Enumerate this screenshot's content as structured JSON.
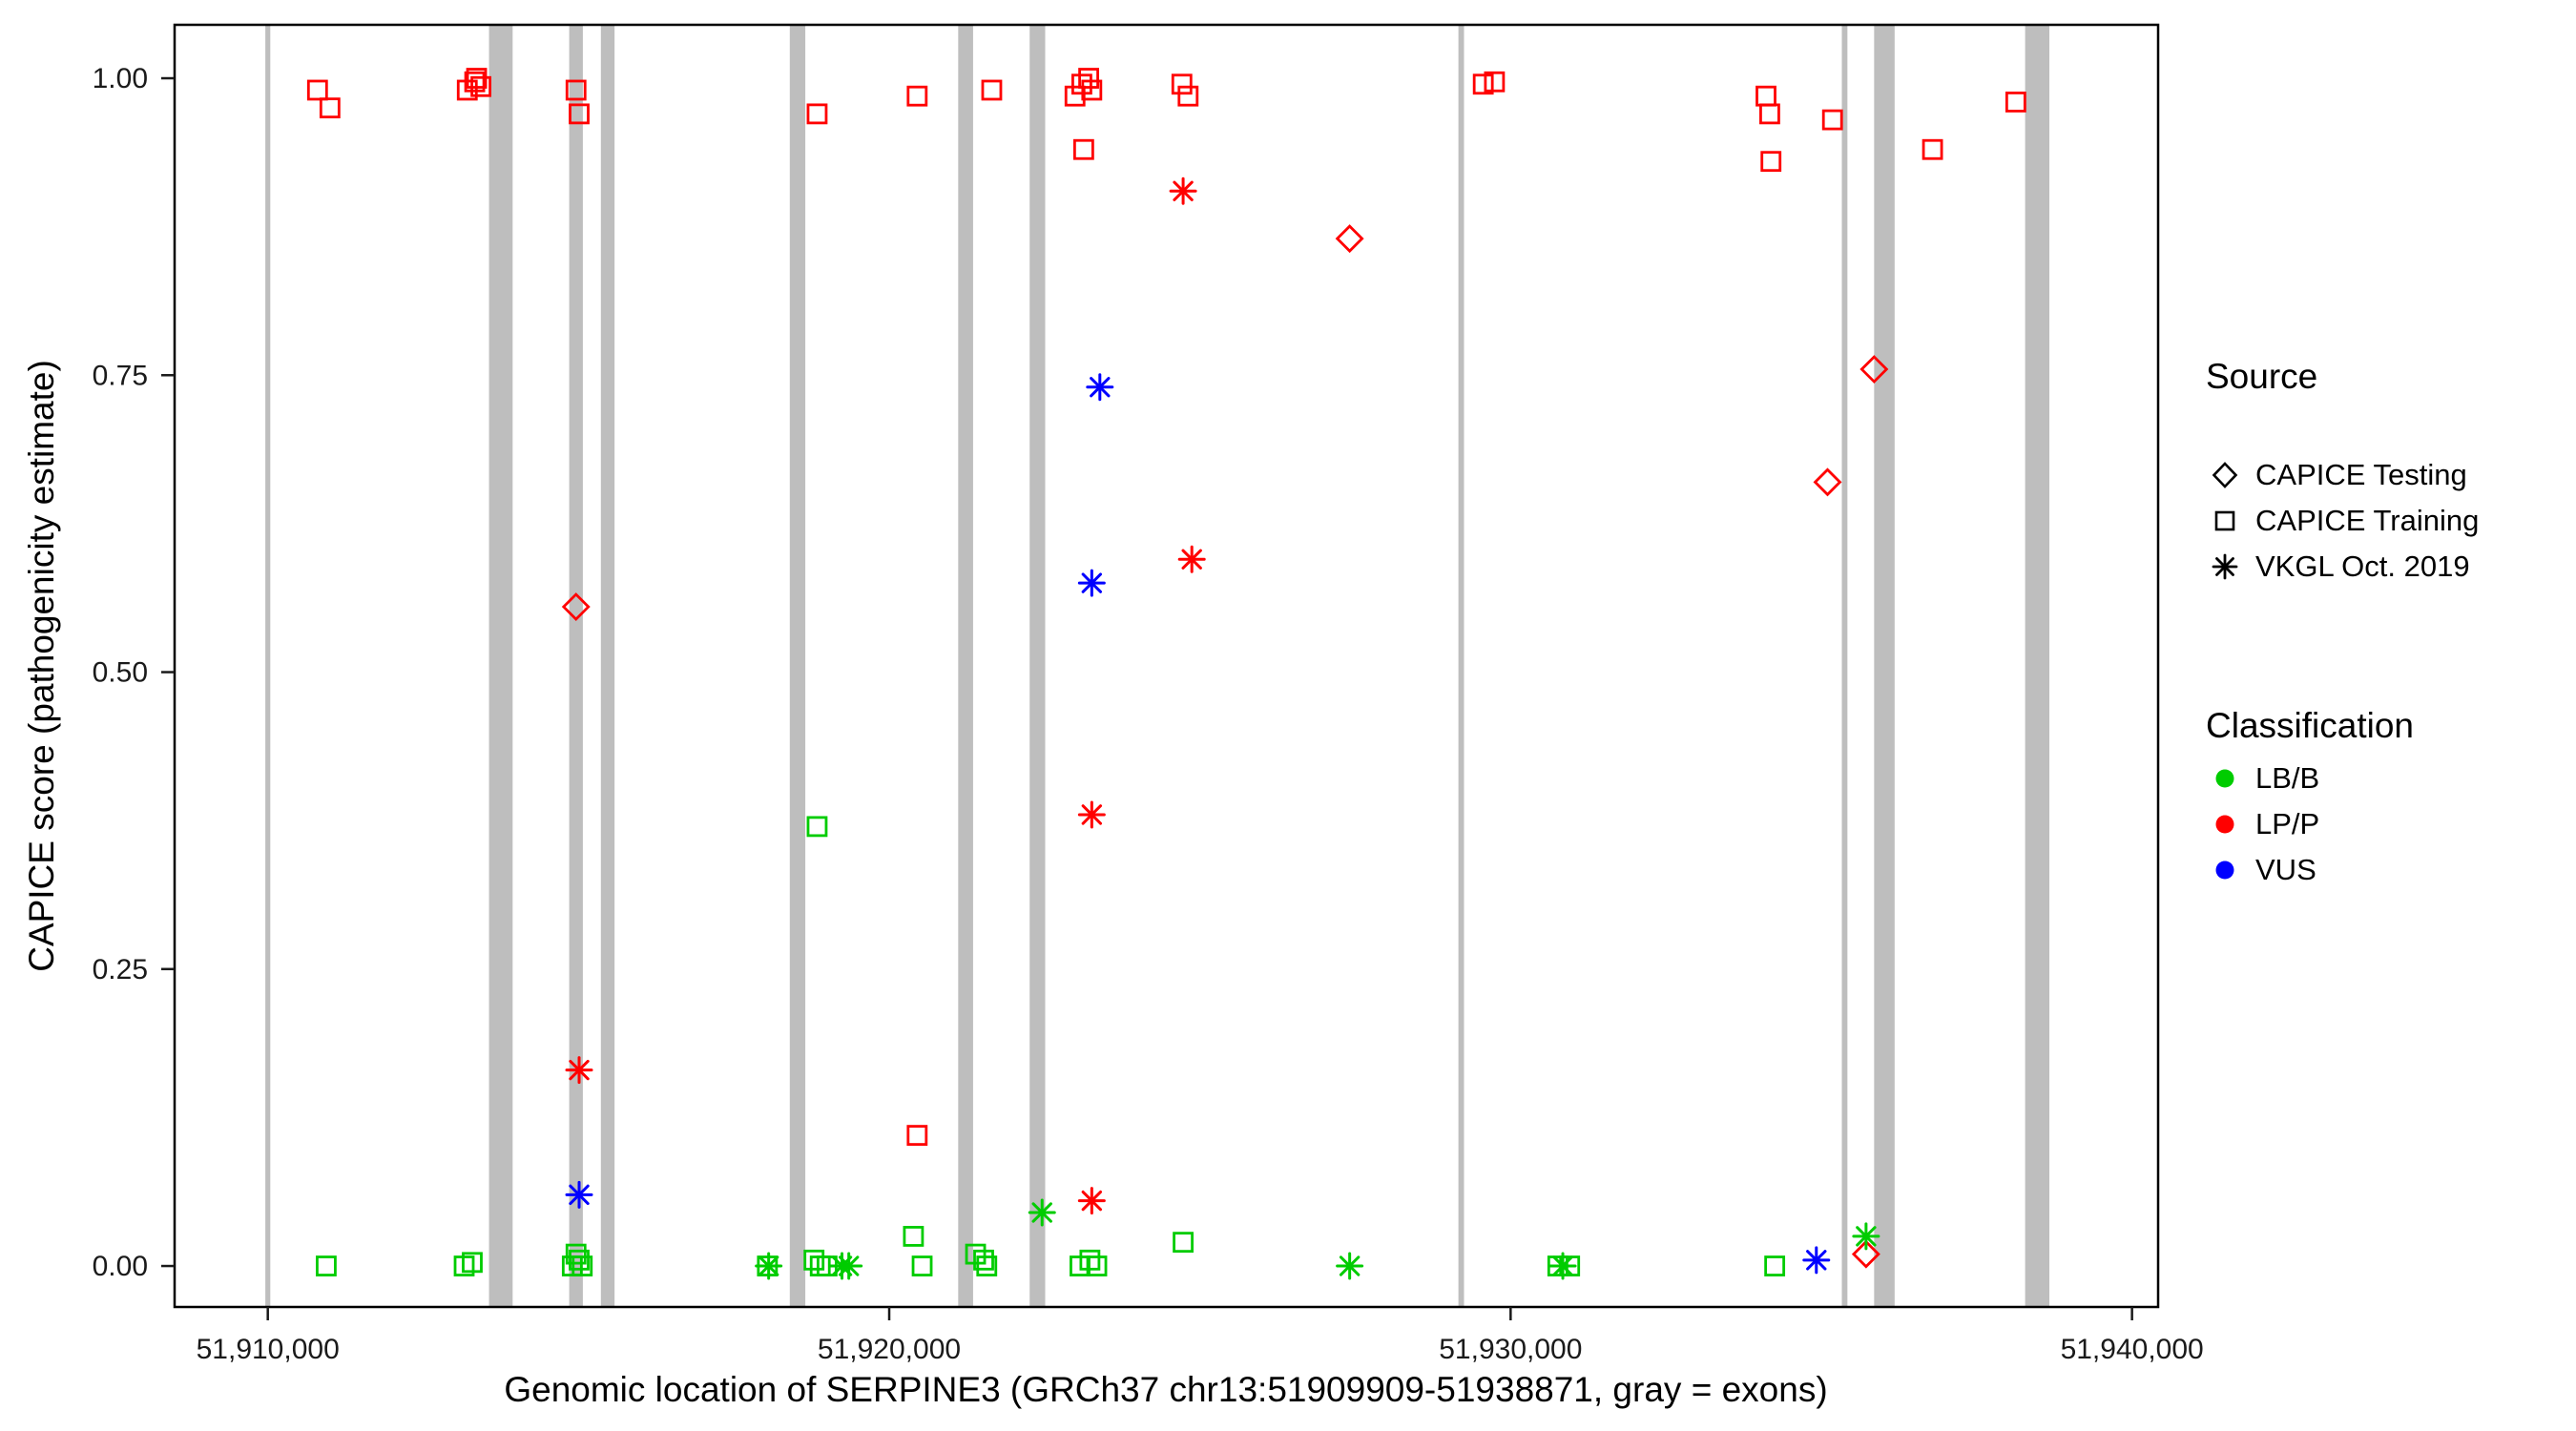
{
  "chart_data": {
    "type": "scatter",
    "title": "",
    "xlabel": "Genomic location of SERPINE3 (GRCh37 chr13:51909909-51938871, gray = exons)",
    "ylabel": "CAPICE score (pathogenicity estimate)",
    "xlim": [
      51908500,
      51940420
    ],
    "ylim": [
      -0.0345,
      1.045
    ],
    "grid": "off",
    "legend_position": "right",
    "exon_color": "#BEBEBE",
    "x_ticks": [
      {
        "value": 51910000,
        "label": "51,910,000"
      },
      {
        "value": 51920000,
        "label": "51,920,000"
      },
      {
        "value": 51930000,
        "label": "51,930,000"
      },
      {
        "value": 51940000,
        "label": "51,940,000"
      }
    ],
    "y_ticks": [
      {
        "value": 0.0,
        "label": "0.00"
      },
      {
        "value": 0.25,
        "label": "0.25"
      },
      {
        "value": 0.5,
        "label": "0.50"
      },
      {
        "value": 0.75,
        "label": "0.75"
      },
      {
        "value": 1.0,
        "label": "1.00"
      }
    ],
    "exons": [
      [
        51909960,
        51910040
      ],
      [
        51913560,
        51913940
      ],
      [
        51914850,
        51915070
      ],
      [
        51915360,
        51915580
      ],
      [
        51918400,
        51918650
      ],
      [
        51921110,
        51921350
      ],
      [
        51922260,
        51922510
      ],
      [
        51929160,
        51929250
      ],
      [
        51935330,
        51935420
      ],
      [
        51935850,
        51936180
      ],
      [
        51938280,
        51938670
      ]
    ],
    "series": [
      {
        "source": "CAPICE Testing",
        "shape": "diamond",
        "classification": "LP/P",
        "color": "#FF0000",
        "points": [
          [
            51914960,
            0.555
          ],
          [
            51927410,
            0.865
          ],
          [
            51935100,
            0.66
          ],
          [
            51935850,
            0.755
          ],
          [
            51935720,
            0.01
          ]
        ]
      },
      {
        "source": "CAPICE Training",
        "shape": "square",
        "classification": "LP/P",
        "color": "#FF0000",
        "points": [
          [
            51910800,
            0.99
          ],
          [
            51911000,
            0.975
          ],
          [
            51913210,
            0.99
          ],
          [
            51913330,
            0.997
          ],
          [
            51913430,
            0.993
          ],
          [
            51913360,
            1.0
          ],
          [
            51914960,
            0.99
          ],
          [
            51915010,
            0.97
          ],
          [
            51918840,
            0.97
          ],
          [
            51920450,
            0.985
          ],
          [
            51920450,
            0.11
          ],
          [
            51921650,
            0.99
          ],
          [
            51922990,
            0.985
          ],
          [
            51923100,
            0.995
          ],
          [
            51923210,
            1.0
          ],
          [
            51923260,
            0.99
          ],
          [
            51923130,
            0.94
          ],
          [
            51924710,
            0.995
          ],
          [
            51924810,
            0.985
          ],
          [
            51929560,
            0.995
          ],
          [
            51929740,
            0.997
          ],
          [
            51934110,
            0.985
          ],
          [
            51934170,
            0.97
          ],
          [
            51934190,
            0.93
          ],
          [
            51935180,
            0.965
          ],
          [
            51936790,
            0.94
          ],
          [
            51938130,
            0.98
          ]
        ]
      },
      {
        "source": "CAPICE Training",
        "shape": "square",
        "classification": "LB/B",
        "color": "#00CC00",
        "points": [
          [
            51910940,
            0.0
          ],
          [
            51913160,
            0.0
          ],
          [
            51913290,
            0.003
          ],
          [
            51914900,
            0.0
          ],
          [
            51914960,
            0.01
          ],
          [
            51915010,
            0.005
          ],
          [
            51915060,
            0.0
          ],
          [
            51918040,
            0.0
          ],
          [
            51918790,
            0.005
          ],
          [
            51918890,
            0.0
          ],
          [
            51919000,
            0.0
          ],
          [
            51918840,
            0.37
          ],
          [
            51920390,
            0.025
          ],
          [
            51920530,
            0.0
          ],
          [
            51921390,
            0.01
          ],
          [
            51921520,
            0.005
          ],
          [
            51921570,
            0.0
          ],
          [
            51923070,
            0.0
          ],
          [
            51923230,
            0.005
          ],
          [
            51923340,
            0.0
          ],
          [
            51924730,
            0.02
          ],
          [
            51930760,
            0.0
          ],
          [
            51930950,
            0.0
          ],
          [
            51934250,
            0.0
          ]
        ]
      },
      {
        "source": "VKGL Oct. 2019",
        "shape": "asterisk",
        "classification": "LP/P",
        "color": "#FF0000",
        "points": [
          [
            51915010,
            0.165
          ],
          [
            51923260,
            0.38
          ],
          [
            51923260,
            0.055
          ],
          [
            51924730,
            0.905
          ],
          [
            51924870,
            0.595
          ]
        ]
      },
      {
        "source": "VKGL Oct. 2019",
        "shape": "asterisk",
        "classification": "LB/B",
        "color": "#00CC00",
        "points": [
          [
            51918060,
            0.0
          ],
          [
            51919240,
            0.0
          ],
          [
            51919350,
            0.0
          ],
          [
            51922460,
            0.045
          ],
          [
            51927410,
            0.0
          ],
          [
            51930840,
            0.0
          ],
          [
            51935720,
            0.025
          ]
        ]
      },
      {
        "source": "VKGL Oct. 2019",
        "shape": "asterisk",
        "classification": "VUS",
        "color": "#0000FF",
        "points": [
          [
            51915010,
            0.06
          ],
          [
            51923260,
            0.575
          ],
          [
            51923390,
            0.74
          ],
          [
            51934920,
            0.005
          ]
        ]
      }
    ]
  },
  "legend": {
    "source": {
      "title": "Source",
      "items": [
        {
          "label": "CAPICE Testing",
          "shape": "diamond"
        },
        {
          "label": "CAPICE Training",
          "shape": "square"
        },
        {
          "label": "VKGL Oct. 2019",
          "shape": "asterisk"
        }
      ]
    },
    "classification": {
      "title": "Classification",
      "items": [
        {
          "label": "LB/B",
          "color": "#00CC00"
        },
        {
          "label": "LP/P",
          "color": "#FF0000"
        },
        {
          "label": "VUS",
          "color": "#0000FF"
        }
      ]
    }
  }
}
